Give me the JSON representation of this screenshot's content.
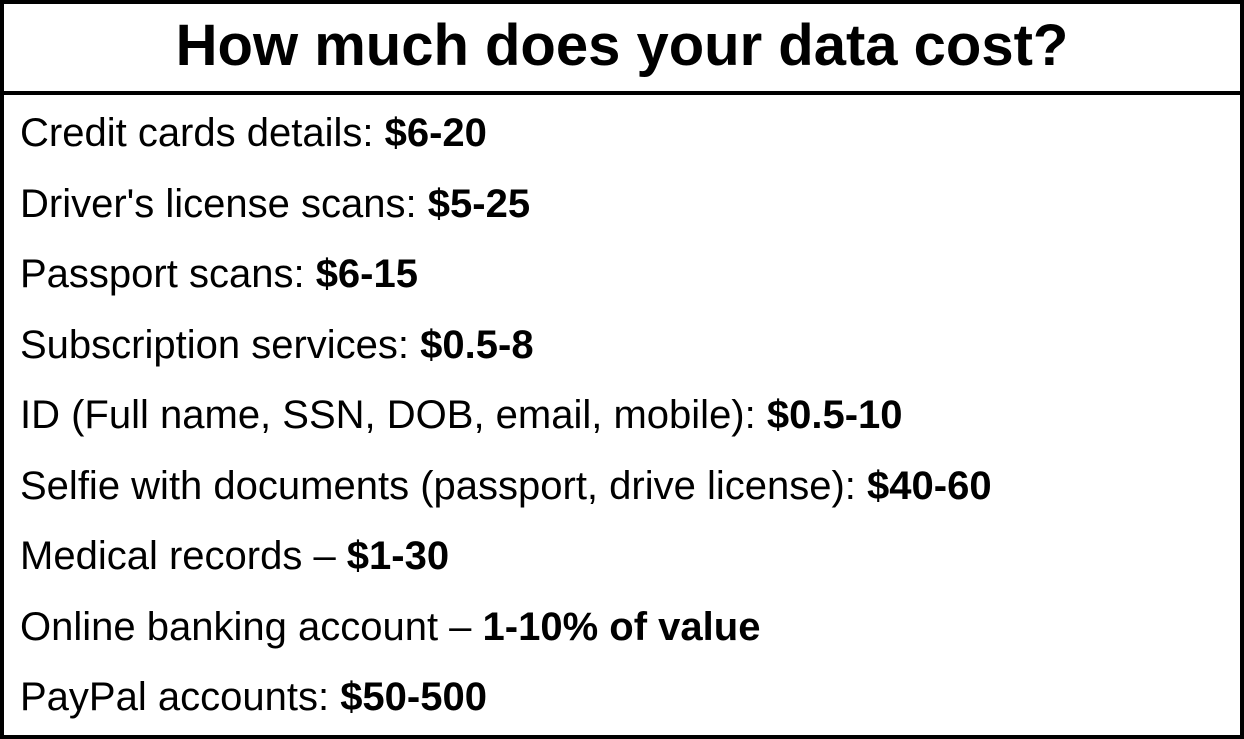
{
  "title": "How much does your data cost?",
  "rows": [
    {
      "label": "Credit cards details: ",
      "value": "$6-20"
    },
    {
      "label": "Driver's license scans: ",
      "value": "$5-25"
    },
    {
      "label": "Passport scans: ",
      "value": "$6-15"
    },
    {
      "label": "Subscription services: ",
      "value": "$0.5-8"
    },
    {
      "label": "ID (Full name, SSN, DOB, email, mobile): ",
      "value": "$0.5-10"
    },
    {
      "label": "Selfie with documents (passport, drive license): ",
      "value": "$40-60"
    },
    {
      "label": "Medical records – ",
      "value": "$1-30"
    },
    {
      "label": "Online banking account – ",
      "value": "1-10% of value"
    },
    {
      "label": "PayPal accounts: ",
      "value": "$50-500"
    }
  ],
  "style": {
    "border_color": "#000000",
    "background_color": "#ffffff",
    "text_color": "#000000",
    "title_fontsize": 58,
    "row_fontsize": 40,
    "font_family": "Arial"
  }
}
